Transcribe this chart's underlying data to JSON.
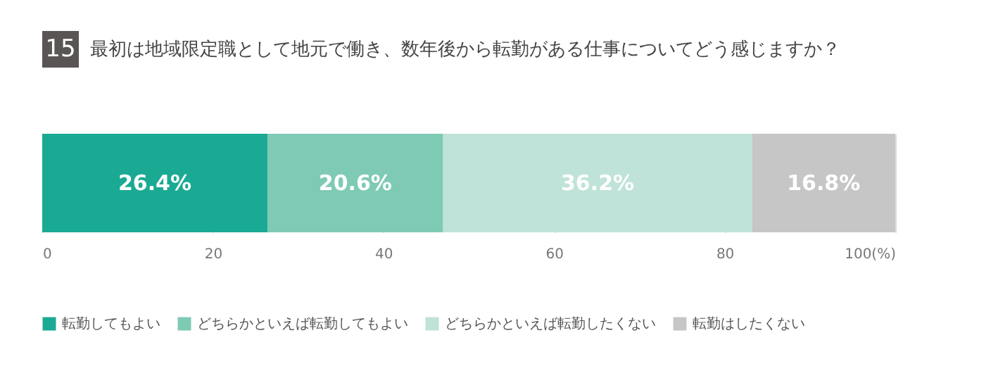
{
  "chart_data": {
    "type": "bar",
    "orientation": "horizontal",
    "stacked": true,
    "title": "最初は地域限定職として地元で働き、数年後から転勤がある仕事についてどう感じますか？",
    "annotations": [
      "15"
    ],
    "categories": [
      null
    ],
    "series": [
      {
        "name": "転勤してもよい",
        "color": "#1aaa94",
        "values": [
          26.4
        ],
        "value_labels": [
          "26.4%"
        ]
      },
      {
        "name": "どちらかといえば転勤してもよい",
        "color": "#7fcab5",
        "values": [
          20.6
        ],
        "value_labels": [
          "20.6%"
        ]
      },
      {
        "name": "どちらかといえば転勤したくない",
        "color": "#bfe3d8",
        "values": [
          36.2
        ],
        "value_labels": [
          "36.2%"
        ]
      },
      {
        "name": "転勤はしたくない",
        "color": "#c6c6c6",
        "values": [
          16.8
        ],
        "value_labels": [
          "16.8%"
        ]
      }
    ],
    "xlim": [
      0,
      100
    ],
    "xticks": [
      0,
      20,
      40,
      60,
      80,
      {
        "value": 100,
        "label": "100(%)"
      }
    ],
    "grid": "x",
    "legend": "bottom"
  }
}
